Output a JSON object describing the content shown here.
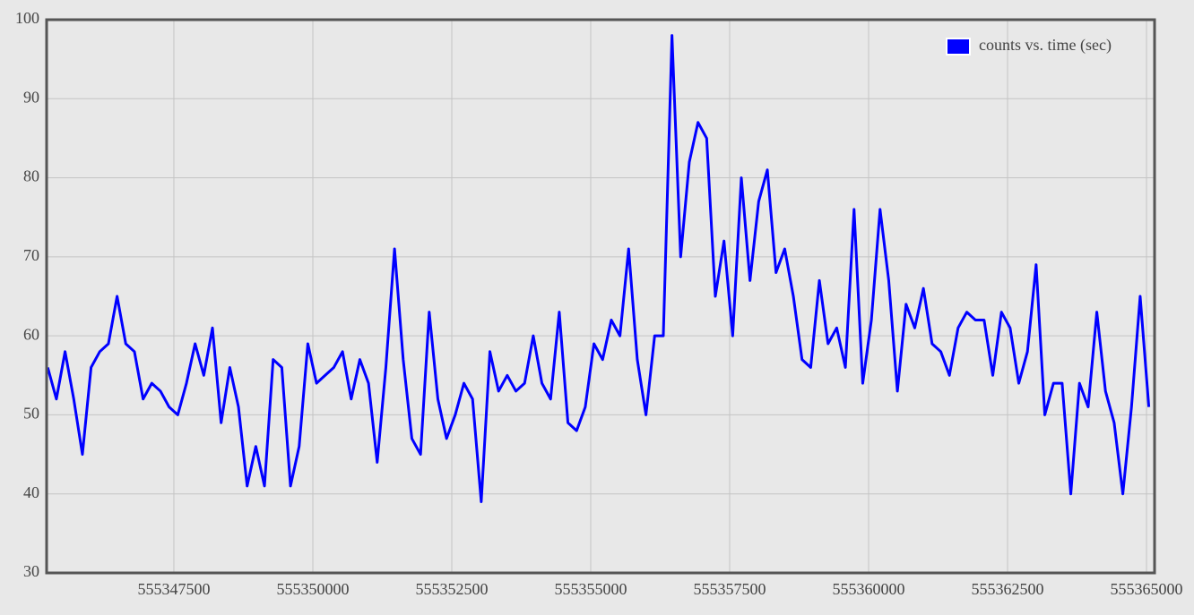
{
  "chart_data": {
    "type": "line",
    "x": [
      555345230,
      555345386,
      555345542,
      555345698,
      555345854,
      555346010,
      555346166,
      555346322,
      555346478,
      555346634,
      555346790,
      555346946,
      555347102,
      555347258,
      555347414,
      555347570,
      555347726,
      555347882,
      555348038,
      555348194,
      555348350,
      555348506,
      555348662,
      555348818,
      555348974,
      555349130,
      555349286,
      555349442,
      555349598,
      555349754,
      555349910,
      555350066,
      555350222,
      555350378,
      555350534,
      555350690,
      555350846,
      555351002,
      555351158,
      555351314,
      555351470,
      555351626,
      555351782,
      555351938,
      555352094,
      555352250,
      555352406,
      555352562,
      555352718,
      555352874,
      555353030,
      555353186,
      555353342,
      555353498,
      555353654,
      555353810,
      555353966,
      555354122,
      555354278,
      555354434,
      555354590,
      555354746,
      555354902,
      555355058,
      555355214,
      555355370,
      555355526,
      555355682,
      555355838,
      555355994,
      555356150,
      555356306,
      555356462,
      555356618,
      555356774,
      555356930,
      555357086,
      555357242,
      555357398,
      555357554,
      555357710,
      555357866,
      555358022,
      555358178,
      555358334,
      555358490,
      555358646,
      555358802,
      555358958,
      555359114,
      555359270,
      555359426,
      555359582,
      555359738,
      555359894,
      555360050,
      555360206,
      555360362,
      555360518,
      555360674,
      555360830,
      555360986,
      555361142,
      555361298,
      555361454,
      555361610,
      555361766,
      555361922,
      555362078,
      555362234,
      555362390,
      555362546,
      555362702,
      555362858,
      555363014,
      555363170,
      555363326,
      555363482,
      555363638,
      555363794,
      555363950,
      555364106,
      555364262,
      555364418,
      555364574,
      555364730,
      555364886,
      555365042
    ],
    "series": [
      {
        "name": "counts vs. time (sec)",
        "color": "#0000ff",
        "values": [
          56,
          52,
          58,
          52,
          45,
          56,
          58,
          59,
          65,
          59,
          58,
          52,
          54,
          53,
          51,
          50,
          54,
          59,
          55,
          61,
          49,
          56,
          51,
          41,
          46,
          41,
          57,
          56,
          41,
          46,
          59,
          54,
          55,
          56,
          58,
          52,
          57,
          54,
          44,
          56,
          71,
          57,
          47,
          45,
          63,
          52,
          47,
          50,
          54,
          52,
          39,
          58,
          53,
          55,
          53,
          54,
          60,
          54,
          52,
          63,
          49,
          48,
          51,
          59,
          57,
          62,
          60,
          71,
          57,
          50,
          60,
          60,
          98,
          70,
          82,
          87,
          85,
          65,
          72,
          60,
          80,
          67,
          77,
          81,
          68,
          71,
          65,
          57,
          56,
          67,
          59,
          61,
          56,
          76,
          54,
          62,
          76,
          67,
          53,
          64,
          61,
          66,
          59,
          58,
          55,
          61,
          63,
          62,
          62,
          55,
          63,
          61,
          54,
          58,
          69,
          50,
          54,
          54,
          40,
          54,
          51,
          63,
          53,
          49,
          40,
          51,
          65,
          51
        ]
      }
    ],
    "xlim": [
      555345210,
      555365145
    ],
    "xticks": [
      555347500,
      555350000,
      555352500,
      555355000,
      555357500,
      555360000,
      555362500,
      555365000
    ],
    "ylim": [
      30,
      100
    ],
    "yticks": [
      30,
      40,
      50,
      60,
      70,
      80,
      90,
      100
    ],
    "grid": true,
    "legend": "top-right"
  }
}
